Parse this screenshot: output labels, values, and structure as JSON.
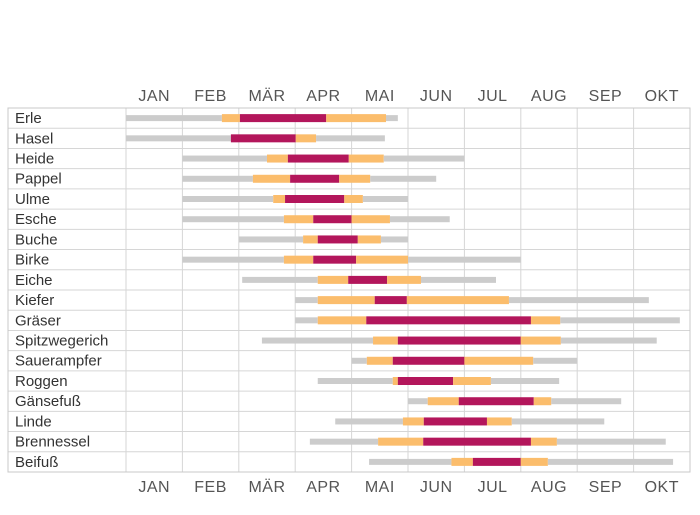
{
  "chart_data": {
    "type": "timeline",
    "categories": [
      "JAN",
      "FEB",
      "MÄR",
      "APR",
      "MAI",
      "JUN",
      "JUL",
      "AUG",
      "SEP",
      "OKT"
    ],
    "xlim": [
      0,
      10
    ],
    "xticks": [
      0,
      1,
      2,
      3,
      4,
      5,
      6,
      7,
      8,
      9,
      10
    ],
    "level_colors": [
      "#cccccc",
      "#fbbd6c",
      "#b3165b"
    ],
    "rows": [
      {
        "name": "Erle",
        "x": [
          0,
          1.7,
          2.02,
          3.55,
          4.61,
          4.82
        ],
        "levels": [
          0,
          1,
          2,
          1,
          0
        ]
      },
      {
        "name": "Hasel",
        "x": [
          0,
          1.86,
          3.01,
          3.37,
          4.59
        ],
        "levels": [
          0,
          2,
          1,
          0
        ]
      },
      {
        "name": "Heide",
        "x": [
          1,
          2.5,
          2.87,
          3.95,
          4.57,
          6
        ],
        "levels": [
          0,
          1,
          2,
          1,
          0
        ]
      },
      {
        "name": "Pappel",
        "x": [
          1,
          2.25,
          2.91,
          3.78,
          4.33,
          5.5
        ],
        "levels": [
          0,
          1,
          2,
          1,
          0
        ]
      },
      {
        "name": "Ulme",
        "x": [
          1,
          2.61,
          2.82,
          3.87,
          4.2,
          5
        ],
        "levels": [
          0,
          1,
          2,
          1,
          0
        ]
      },
      {
        "name": "Esche",
        "x": [
          1,
          2.8,
          3.32,
          4,
          4.68,
          5.74
        ],
        "levels": [
          0,
          1,
          2,
          1,
          0
        ]
      },
      {
        "name": "Buche",
        "x": [
          2,
          3.14,
          3.4,
          4.11,
          4.52,
          5
        ],
        "levels": [
          0,
          1,
          2,
          1,
          0
        ]
      },
      {
        "name": "Birke",
        "x": [
          1,
          2.8,
          3.32,
          4.08,
          5,
          7
        ],
        "levels": [
          0,
          1,
          2,
          1,
          0
        ]
      },
      {
        "name": "Eiche",
        "x": [
          2.06,
          3.4,
          3.94,
          4.63,
          5.23,
          6.56
        ],
        "levels": [
          0,
          1,
          2,
          1,
          0
        ]
      },
      {
        "name": "Kiefer",
        "x": [
          3,
          3.4,
          4.41,
          4.98,
          6.79,
          9.27
        ],
        "levels": [
          0,
          1,
          2,
          1,
          0
        ]
      },
      {
        "name": "Gräser",
        "x": [
          3,
          3.4,
          4.26,
          7.18,
          7.7,
          9.82
        ],
        "levels": [
          0,
          1,
          2,
          1,
          0
        ]
      },
      {
        "name": "Spitzwegerich",
        "x": [
          2.41,
          4.38,
          4.82,
          7,
          7.71,
          9.41
        ],
        "levels": [
          0,
          1,
          2,
          1,
          0
        ]
      },
      {
        "name": "Sauerampfer",
        "x": [
          4,
          4.27,
          4.73,
          6,
          7.22,
          8
        ],
        "levels": [
          0,
          1,
          2,
          1,
          0
        ]
      },
      {
        "name": "Roggen",
        "x": [
          3.4,
          4.73,
          4.82,
          5.8,
          6.47,
          7.68
        ],
        "levels": [
          0,
          1,
          2,
          1,
          0
        ]
      },
      {
        "name": "Gänsefuß",
        "x": [
          5,
          5.35,
          5.9,
          7.23,
          7.54,
          8.78
        ],
        "levels": [
          0,
          1,
          2,
          1,
          0
        ]
      },
      {
        "name": "Linde",
        "x": [
          3.71,
          4.91,
          5.28,
          6.4,
          6.84,
          8.48
        ],
        "levels": [
          0,
          1,
          2,
          1,
          0
        ]
      },
      {
        "name": "Brennessel",
        "x": [
          3.26,
          4.47,
          5.27,
          7.18,
          7.64,
          9.57
        ],
        "levels": [
          0,
          1,
          2,
          1,
          0
        ]
      },
      {
        "name": "Beifuß",
        "x": [
          4.31,
          5.77,
          6.15,
          7,
          7.48,
          9.7
        ],
        "levels": [
          0,
          1,
          2,
          1,
          0
        ]
      }
    ]
  }
}
